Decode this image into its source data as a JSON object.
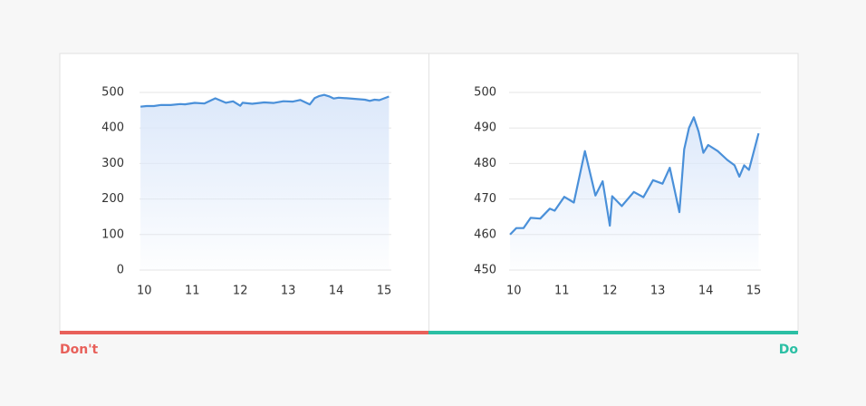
{
  "chart_data": [
    {
      "type": "line",
      "caption": "Don't",
      "caption_color": "#e8605a",
      "line_color": "#4a90d9",
      "fill_color": "#dce8fa",
      "grid": true,
      "x": [
        9.92,
        10.05,
        10.2,
        10.35,
        10.55,
        10.75,
        10.85,
        11.05,
        11.25,
        11.48,
        11.7,
        11.85,
        12.0,
        12.05,
        12.25,
        12.5,
        12.7,
        12.9,
        13.1,
        13.25,
        13.45,
        13.55,
        13.65,
        13.75,
        13.85,
        13.95,
        14.05,
        14.25,
        14.45,
        14.6,
        14.7,
        14.8,
        14.9,
        15.1
      ],
      "values": [
        460,
        461.8,
        461.8,
        464.7,
        464.5,
        467.3,
        466.7,
        470.6,
        469,
        483.5,
        471,
        475,
        462.5,
        470.8,
        468,
        472,
        470.5,
        475.3,
        474.3,
        478.8,
        466.3,
        484,
        490,
        493,
        489,
        483,
        485.2,
        483.5,
        481,
        479.5,
        476.3,
        479.5,
        478.2,
        488.5
      ],
      "xlim": [
        9.9,
        15.15
      ],
      "xticks": [
        10,
        11,
        12,
        13,
        14,
        15
      ],
      "ylim": [
        0,
        500
      ],
      "yticks": [
        0,
        100,
        200,
        300,
        400,
        500
      ]
    },
    {
      "type": "line",
      "caption": "Do",
      "caption_color": "#2bbfa4",
      "line_color": "#4a90d9",
      "fill_color": "#dce8fa",
      "grid": true,
      "x": [
        9.92,
        10.05,
        10.2,
        10.35,
        10.55,
        10.75,
        10.85,
        11.05,
        11.25,
        11.48,
        11.7,
        11.85,
        12.0,
        12.05,
        12.25,
        12.5,
        12.7,
        12.9,
        13.1,
        13.25,
        13.45,
        13.55,
        13.65,
        13.75,
        13.85,
        13.95,
        14.05,
        14.25,
        14.45,
        14.6,
        14.7,
        14.8,
        14.9,
        15.1
      ],
      "values": [
        460,
        461.8,
        461.8,
        464.7,
        464.5,
        467.3,
        466.7,
        470.6,
        469,
        483.5,
        471,
        475,
        462.5,
        470.8,
        468,
        472,
        470.5,
        475.3,
        474.3,
        478.8,
        466.3,
        484,
        490,
        493,
        489,
        483,
        485.2,
        483.5,
        481,
        479.5,
        476.3,
        479.5,
        478.2,
        488.5
      ],
      "xlim": [
        9.9,
        15.15
      ],
      "xticks": [
        10,
        11,
        12,
        13,
        14,
        15
      ],
      "ylim": [
        450,
        500
      ],
      "yticks": [
        450,
        460,
        470,
        480,
        490,
        500
      ]
    }
  ]
}
